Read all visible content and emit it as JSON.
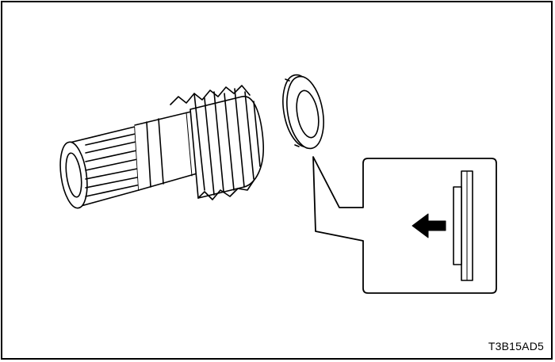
{
  "figure": {
    "code": "T3B15AD5"
  },
  "parts": [
    {
      "icon": "helical-gear-shaft-icon"
    },
    {
      "icon": "thrust-washer-icon"
    },
    {
      "icon": "detail-callout-icon"
    },
    {
      "icon": "direction-arrow-icon"
    }
  ]
}
